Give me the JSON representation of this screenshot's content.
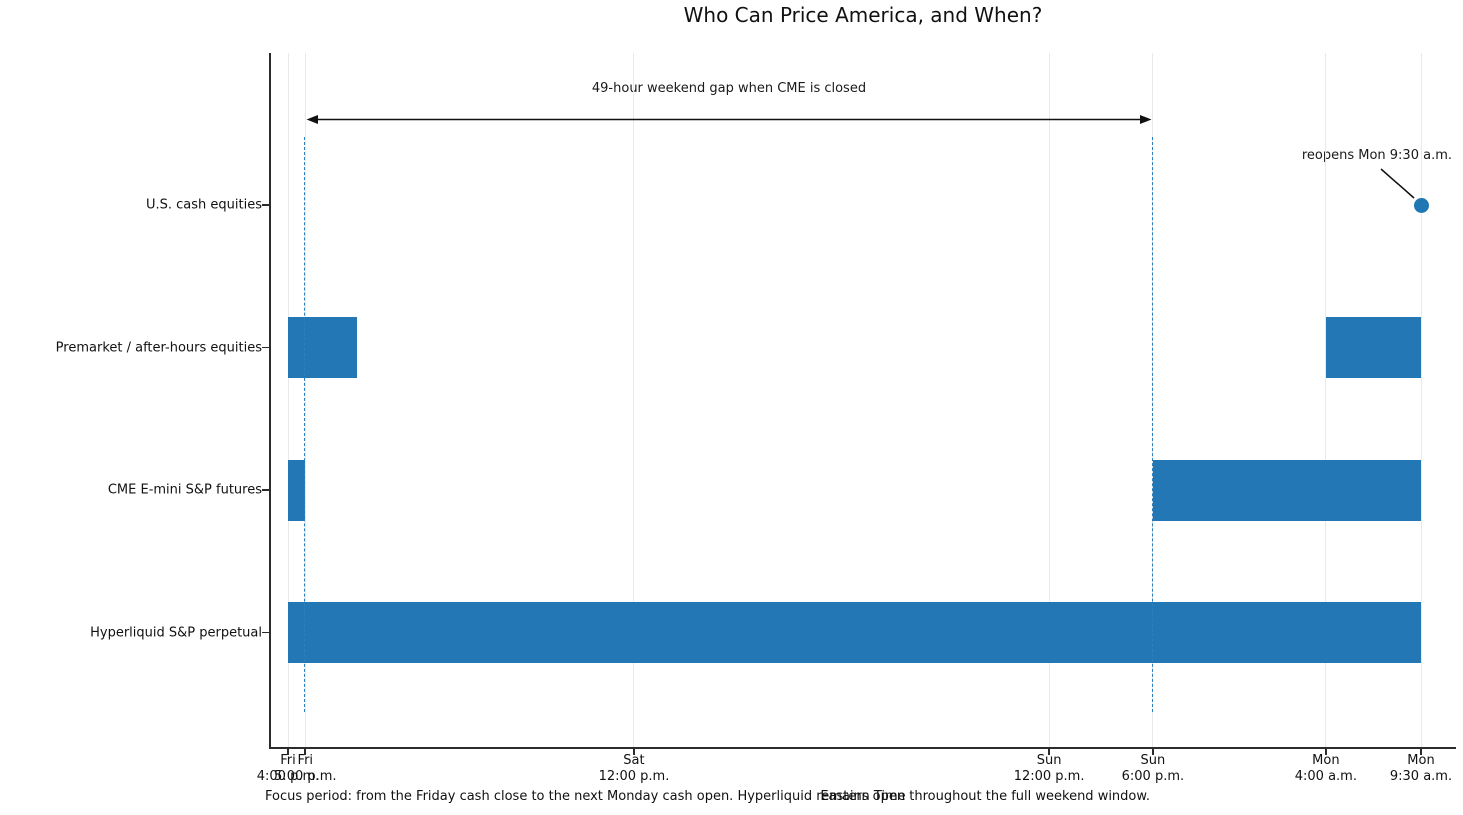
{
  "chart_data": {
    "type": "bar",
    "subtype": "horizontal-gantt-timeline",
    "title": "Who Can Price America, and When?",
    "xlabel": "Eastern Time",
    "caption": "Focus period: from the Friday cash close to the next Monday cash open. Hyperliquid remains open throughout the full weekend window.",
    "x_unit": "hours since Fri 4:00 p.m. ET",
    "x_range_hours": [
      0,
      65.5
    ],
    "grid": "vertical-only",
    "x_ticks": [
      {
        "hours": 0,
        "line1": "Fri",
        "line2": "4:00 p.m."
      },
      {
        "hours": 1,
        "line1": "Fri",
        "line2": "5:00 p.m."
      },
      {
        "hours": 20,
        "line1": "Sat",
        "line2": "12:00 p.m."
      },
      {
        "hours": 44,
        "line1": "Sun",
        "line2": "12:00 p.m."
      },
      {
        "hours": 50,
        "line1": "Sun",
        "line2": "6:00 p.m."
      },
      {
        "hours": 60,
        "line1": "Mon",
        "line2": "4:00 a.m."
      },
      {
        "hours": 65.5,
        "line1": "Mon",
        "line2": "9:30 a.m."
      }
    ],
    "rows": [
      {
        "label": "U.S. cash equities",
        "open_intervals_hours": [],
        "marker": {
          "hours": 65.5
        }
      },
      {
        "label": "Premarket / after-hours equities",
        "open_intervals_hours": [
          [
            0,
            4
          ],
          [
            60,
            65.5
          ]
        ]
      },
      {
        "label": "CME E-mini S&P futures",
        "open_intervals_hours": [
          [
            0,
            1
          ],
          [
            50,
            65.5
          ]
        ]
      },
      {
        "label": "Hyperliquid S&P perpetual",
        "open_intervals_hours": [
          [
            0,
            65.5
          ]
        ]
      }
    ],
    "annotations": {
      "gap": {
        "label": "49-hour weekend gap when CME is closed",
        "from_hours": 1,
        "to_hours": 50
      },
      "reopens": {
        "label": "reopens Mon 9:30 a.m.",
        "at_hours": 65.5,
        "row": "U.S. cash equities"
      }
    },
    "guides": {
      "dashed_lines_hours": [
        1,
        50
      ]
    },
    "colors": {
      "bar": "#2277b4",
      "dashed_line": "#2e7fbd",
      "marker_dot": "#1f77b4",
      "gridline": "#e9e9e9",
      "axis": "#2b2b2b",
      "text": "#111111",
      "background": "#ffffff"
    }
  }
}
